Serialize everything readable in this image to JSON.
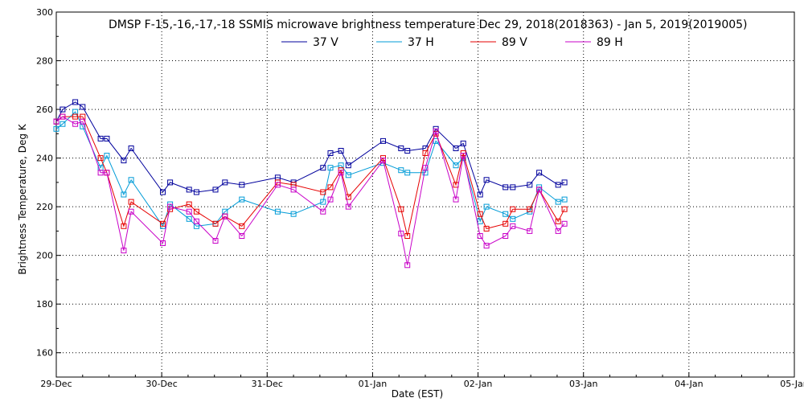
{
  "chart_data": {
    "type": "line",
    "title": "DMSP F-15,-16,-17,-18 SSMIS microwave brightness temperature Dec 29, 2018(2018363) - Jan  5, 2019(2019005)",
    "xlabel": "Date (EST)",
    "ylabel": "Brightness Temperature, Deg K",
    "xlim": [
      "29-Dec",
      "05-Jan"
    ],
    "ylim": [
      150,
      300
    ],
    "x_tick_labels": [
      "29-Dec",
      "30-Dec",
      "31-Dec",
      "01-Jan",
      "02-Jan",
      "03-Jan",
      "04-Jan",
      "05-Jan"
    ],
    "y_ticks": [
      160,
      180,
      200,
      220,
      240,
      260,
      280,
      300
    ],
    "grid": true,
    "legend_position": "top-center",
    "series": [
      {
        "name": "37 V",
        "color": "#00009c",
        "points": [
          [
            0.0,
            255
          ],
          [
            0.06,
            260
          ],
          [
            0.18,
            263
          ],
          [
            0.25,
            261
          ],
          [
            0.42,
            248
          ],
          [
            0.48,
            248
          ],
          [
            0.64,
            239
          ],
          [
            0.71,
            244
          ],
          [
            1.01,
            226
          ],
          [
            1.08,
            230
          ],
          [
            1.26,
            227
          ],
          [
            1.33,
            226
          ],
          [
            1.51,
            227
          ],
          [
            1.6,
            230
          ],
          [
            1.76,
            229
          ],
          [
            2.1,
            232
          ],
          [
            2.25,
            230
          ],
          [
            2.53,
            236
          ],
          [
            2.6,
            242
          ],
          [
            2.7,
            243
          ],
          [
            2.77,
            237
          ],
          [
            3.1,
            247
          ],
          [
            3.27,
            244
          ],
          [
            3.33,
            243
          ],
          [
            3.5,
            244
          ],
          [
            3.6,
            252
          ],
          [
            3.79,
            244
          ],
          [
            3.86,
            246
          ],
          [
            4.02,
            225
          ],
          [
            4.08,
            231
          ],
          [
            4.26,
            228
          ],
          [
            4.33,
            228
          ],
          [
            4.49,
            229
          ],
          [
            4.58,
            234
          ],
          [
            4.76,
            229
          ],
          [
            4.82,
            230
          ]
        ]
      },
      {
        "name": "37 H",
        "color": "#009bd7",
        "points": [
          [
            0.0,
            252
          ],
          [
            0.06,
            254
          ],
          [
            0.18,
            259
          ],
          [
            0.25,
            253
          ],
          [
            0.42,
            236
          ],
          [
            0.48,
            241
          ],
          [
            0.64,
            225
          ],
          [
            0.71,
            231
          ],
          [
            1.01,
            212
          ],
          [
            1.08,
            221
          ],
          [
            1.26,
            215
          ],
          [
            1.33,
            212
          ],
          [
            1.51,
            213
          ],
          [
            1.6,
            218
          ],
          [
            1.76,
            223
          ],
          [
            2.1,
            218
          ],
          [
            2.25,
            217
          ],
          [
            2.53,
            222
          ],
          [
            2.6,
            236
          ],
          [
            2.7,
            237
          ],
          [
            2.77,
            233
          ],
          [
            3.1,
            238
          ],
          [
            3.27,
            235
          ],
          [
            3.33,
            234
          ],
          [
            3.5,
            234
          ],
          [
            3.6,
            247
          ],
          [
            3.79,
            237
          ],
          [
            3.86,
            240
          ],
          [
            4.02,
            214
          ],
          [
            4.08,
            220
          ],
          [
            4.26,
            217
          ],
          [
            4.33,
            215
          ],
          [
            4.49,
            218
          ],
          [
            4.58,
            228
          ],
          [
            4.76,
            222
          ],
          [
            4.82,
            223
          ]
        ]
      },
      {
        "name": "89 V",
        "color": "#e60000",
        "points": [
          [
            0.0,
            255
          ],
          [
            0.06,
            257
          ],
          [
            0.18,
            257
          ],
          [
            0.25,
            257
          ],
          [
            0.42,
            240
          ],
          [
            0.48,
            234
          ],
          [
            0.64,
            212
          ],
          [
            0.71,
            222
          ],
          [
            1.01,
            213
          ],
          [
            1.08,
            219
          ],
          [
            1.26,
            221
          ],
          [
            1.33,
            218
          ],
          [
            1.51,
            213
          ],
          [
            1.6,
            216
          ],
          [
            1.76,
            212
          ],
          [
            2.1,
            230
          ],
          [
            2.25,
            229
          ],
          [
            2.53,
            226
          ],
          [
            2.6,
            228
          ],
          [
            2.7,
            235
          ],
          [
            2.77,
            224
          ],
          [
            3.1,
            240
          ],
          [
            3.27,
            219
          ],
          [
            3.33,
            208
          ],
          [
            3.5,
            242
          ],
          [
            3.6,
            250
          ],
          [
            3.79,
            229
          ],
          [
            3.86,
            242
          ],
          [
            4.02,
            217
          ],
          [
            4.08,
            211
          ],
          [
            4.26,
            213
          ],
          [
            4.33,
            219
          ],
          [
            4.49,
            219
          ],
          [
            4.58,
            227
          ],
          [
            4.76,
            214
          ],
          [
            4.82,
            219
          ]
        ]
      },
      {
        "name": "89 H",
        "color": "#c800c8",
        "points": [
          [
            0.0,
            255
          ],
          [
            0.06,
            257
          ],
          [
            0.18,
            254
          ],
          [
            0.25,
            255
          ],
          [
            0.42,
            234
          ],
          [
            0.48,
            234
          ],
          [
            0.64,
            202
          ],
          [
            0.71,
            218
          ],
          [
            1.01,
            205
          ],
          [
            1.08,
            220
          ],
          [
            1.26,
            218
          ],
          [
            1.33,
            214
          ],
          [
            1.51,
            206
          ],
          [
            1.6,
            216
          ],
          [
            1.76,
            208
          ],
          [
            2.1,
            229
          ],
          [
            2.25,
            227
          ],
          [
            2.53,
            218
          ],
          [
            2.6,
            223
          ],
          [
            2.7,
            234
          ],
          [
            2.77,
            220
          ],
          [
            3.1,
            239
          ],
          [
            3.27,
            209
          ],
          [
            3.33,
            196
          ],
          [
            3.5,
            236
          ],
          [
            3.6,
            251
          ],
          [
            3.79,
            223
          ],
          [
            3.86,
            241
          ],
          [
            4.02,
            208
          ],
          [
            4.08,
            204
          ],
          [
            4.26,
            208
          ],
          [
            4.33,
            212
          ],
          [
            4.49,
            210
          ],
          [
            4.58,
            227
          ],
          [
            4.76,
            210
          ],
          [
            4.82,
            213
          ]
        ]
      }
    ]
  }
}
